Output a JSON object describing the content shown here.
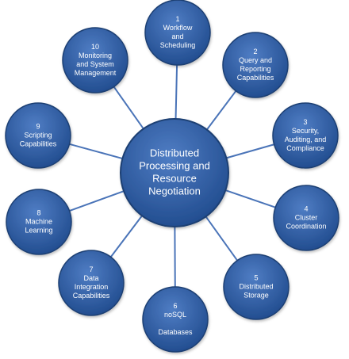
{
  "diagram": {
    "center": {
      "lines": [
        "Distributed",
        "Processing and",
        "Resource",
        "Negotiation"
      ]
    },
    "nodes": [
      {
        "number": "1",
        "lines": [
          "Workflow",
          "and",
          "Scheduling"
        ]
      },
      {
        "number": "2",
        "lines": [
          "Query and",
          "Reporting",
          "Capabilities"
        ]
      },
      {
        "number": "3",
        "lines": [
          "Security,",
          "Auditing, and",
          "Compliance"
        ]
      },
      {
        "number": "4",
        "lines": [
          "Cluster",
          "Coordination"
        ]
      },
      {
        "number": "5",
        "lines": [
          "Distributed",
          "Storage"
        ]
      },
      {
        "number": "6",
        "lines": [
          "noSQL",
          "",
          "Databases"
        ]
      },
      {
        "number": "7",
        "lines": [
          "Data",
          "Integration",
          "Capabilities"
        ]
      },
      {
        "number": "8",
        "lines": [
          "Machine",
          "Learning"
        ]
      },
      {
        "number": "9",
        "lines": [
          "Scripting",
          "Capabilities"
        ]
      },
      {
        "number": "10",
        "lines": [
          "Monitoring",
          "and System",
          "Management"
        ]
      }
    ],
    "colors": {
      "node_fill": "#2E5A9E",
      "node_stroke": "#1F3F73",
      "connector": "#4A74B8",
      "text": "#ffffff"
    }
  }
}
